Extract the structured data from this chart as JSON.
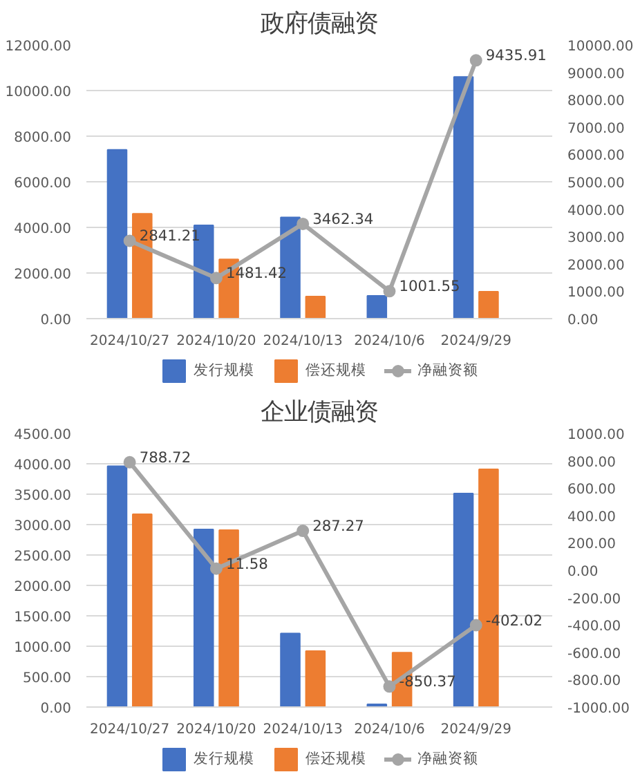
{
  "chart_data": [
    {
      "type": "bar",
      "title": "政府债融资",
      "categories": [
        "2024/10/27",
        "2024/10/20",
        "2024/10/13",
        "2024/10/6",
        "2024/9/29"
      ],
      "series": [
        {
          "name": "发行规模",
          "color": "#4472c4",
          "values": [
            7400,
            4090,
            4440,
            1001.55,
            10600
          ]
        },
        {
          "name": "偿还规模",
          "color": "#ed7d31",
          "values": [
            4600,
            2600,
            970,
            0,
            1180
          ]
        },
        {
          "name": "净融资额",
          "type": "line",
          "axis": "y2",
          "color": "#a5a5a5",
          "marker": "circle",
          "values": [
            2841.21,
            1481.42,
            3462.34,
            1001.55,
            9435.91
          ],
          "value_labels": [
            "2841.21",
            "1481.42",
            "3462.34",
            "1001.55",
            "9435.91"
          ]
        }
      ],
      "ylim": [
        0,
        12000
      ],
      "yticks": [
        {
          "value": 0,
          "label": "0.00"
        },
        {
          "value": 2000,
          "label": "2000.00"
        },
        {
          "value": 4000,
          "label": "4000.00"
        },
        {
          "value": 6000,
          "label": "6000.00"
        },
        {
          "value": 8000,
          "label": "8000.00"
        },
        {
          "value": 10000,
          "label": "10000.00"
        },
        {
          "value": 12000,
          "label": "12000.00"
        }
      ],
      "y2lim": [
        0,
        10000
      ],
      "y2ticks": [
        {
          "value": 0,
          "label": "0.00"
        },
        {
          "value": 1000,
          "label": "1000.00"
        },
        {
          "value": 2000,
          "label": "2000.00"
        },
        {
          "value": 3000,
          "label": "3000.00"
        },
        {
          "value": 4000,
          "label": "4000.00"
        },
        {
          "value": 5000,
          "label": "5000.00"
        },
        {
          "value": 6000,
          "label": "6000.00"
        },
        {
          "value": 7000,
          "label": "7000.00"
        },
        {
          "value": 8000,
          "label": "8000.00"
        },
        {
          "value": 9000,
          "label": "9000.00"
        },
        {
          "value": 10000,
          "label": "10000.00"
        }
      ],
      "grid": "y",
      "legend": "bottom"
    },
    {
      "type": "bar",
      "title": "企业债融资",
      "categories": [
        "2024/10/27",
        "2024/10/20",
        "2024/10/13",
        "2024/10/6",
        "2024/9/29"
      ],
      "series": [
        {
          "name": "发行规模",
          "color": "#4472c4",
          "values": [
            3960,
            2920,
            1210,
            45,
            3510
          ]
        },
        {
          "name": "偿还规模",
          "color": "#ed7d31",
          "values": [
            3170,
            2910,
            920,
            895,
            3910
          ]
        },
        {
          "name": "净融资额",
          "type": "line",
          "axis": "y2",
          "color": "#a5a5a5",
          "marker": "circle",
          "values": [
            788.72,
            11.58,
            287.27,
            -850.37,
            -402.02
          ],
          "value_labels": [
            "788.72",
            "11.58",
            "287.27",
            "-850.37",
            "-402.02"
          ]
        }
      ],
      "ylim": [
        0,
        4500
      ],
      "yticks": [
        {
          "value": 0,
          "label": "0.00"
        },
        {
          "value": 500,
          "label": "500.00"
        },
        {
          "value": 1000,
          "label": "1000.00"
        },
        {
          "value": 1500,
          "label": "1500.00"
        },
        {
          "value": 2000,
          "label": "2000.00"
        },
        {
          "value": 2500,
          "label": "2500.00"
        },
        {
          "value": 3000,
          "label": "3000.00"
        },
        {
          "value": 3500,
          "label": "3500.00"
        },
        {
          "value": 4000,
          "label": "4000.00"
        },
        {
          "value": 4500,
          "label": "4500.00"
        }
      ],
      "y2lim": [
        -1000,
        1000
      ],
      "y2ticks": [
        {
          "value": -1000,
          "label": "-1000.00"
        },
        {
          "value": -800,
          "label": "-800.00"
        },
        {
          "value": -600,
          "label": "-600.00"
        },
        {
          "value": -400,
          "label": "-400.00"
        },
        {
          "value": -200,
          "label": "-200.00"
        },
        {
          "value": 0,
          "label": "0.00"
        },
        {
          "value": 200,
          "label": "200.00"
        },
        {
          "value": 400,
          "label": "400.00"
        },
        {
          "value": 600,
          "label": "600.00"
        },
        {
          "value": 800,
          "label": "800.00"
        },
        {
          "value": 1000,
          "label": "1000.00"
        }
      ],
      "grid": "y",
      "legend": "bottom"
    }
  ]
}
